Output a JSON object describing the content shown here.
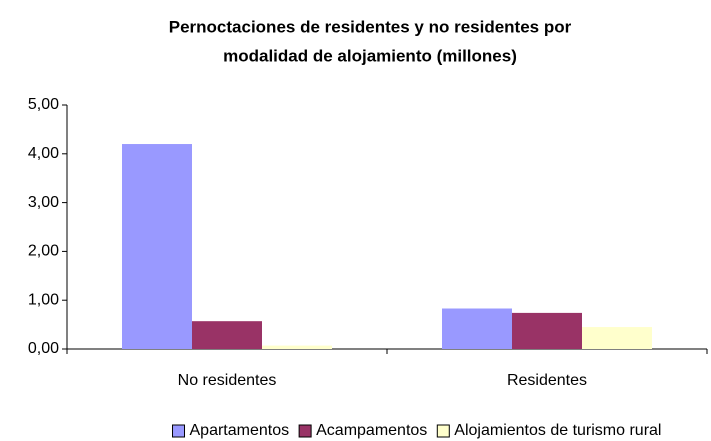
{
  "chart_data": {
    "type": "bar",
    "title": [
      "Pernoctaciones de residentes y no residentes por",
      "modalidad de alojamiento (millones)"
    ],
    "categories": [
      "No residentes",
      "Residentes"
    ],
    "series": [
      {
        "name": "Apartamentos",
        "color": "#9999ff",
        "values": [
          4.2,
          0.83
        ]
      },
      {
        "name": "Acampamentos",
        "color": "#993366",
        "values": [
          0.57,
          0.74
        ]
      },
      {
        "name": "Alojamientos de turismo rural",
        "color": "#ffffcc",
        "values": [
          0.07,
          0.45
        ]
      }
    ],
    "ylim": [
      0,
      5
    ],
    "yticks": [
      {
        "value": 0,
        "label": "0,00"
      },
      {
        "value": 1,
        "label": "1,00"
      },
      {
        "value": 2,
        "label": "2,00"
      },
      {
        "value": 3,
        "label": "3,00"
      },
      {
        "value": 4,
        "label": "4,00"
      },
      {
        "value": 5,
        "label": "5,00"
      }
    ],
    "legend": "bottom"
  }
}
